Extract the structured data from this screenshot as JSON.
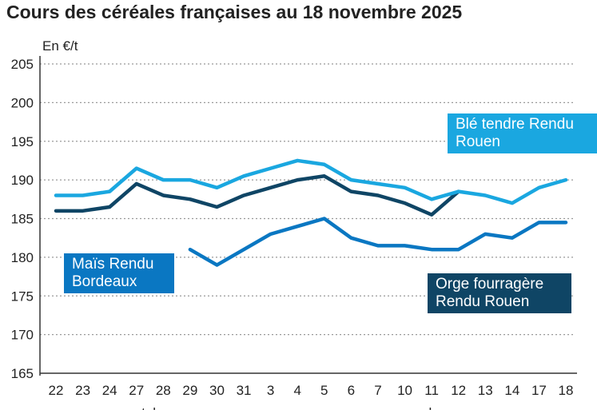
{
  "chart_data": {
    "type": "line",
    "title": "Cours des céréales françaises au 18 novembre 2025",
    "ylabel": "En €/t",
    "ylim": [
      165,
      205
    ],
    "yticks": [
      165,
      170,
      175,
      180,
      185,
      190,
      195,
      200,
      205
    ],
    "grid": true,
    "categories": [
      "22",
      "23",
      "24",
      "27",
      "28",
      "29",
      "30",
      "31",
      "3",
      "4",
      "5",
      "6",
      "7",
      "10",
      "11",
      "12",
      "13",
      "14",
      "17",
      "18"
    ],
    "months": [
      {
        "label": "octobre",
        "from": 0,
        "to": 7
      },
      {
        "label": "novembre",
        "from": 8,
        "to": 19
      }
    ],
    "series": [
      {
        "name": "Orge fourragère Rendu Rouen",
        "color": "#0f4565",
        "values": [
          186,
          186,
          186.5,
          189.5,
          188,
          187.5,
          186.5,
          188,
          189,
          190,
          190.5,
          188.5,
          188,
          187,
          185.5,
          188.5,
          null,
          null,
          null,
          null
        ]
      },
      {
        "name": "Maïs Rendu Bordeaux",
        "color": "#0a77c2",
        "values": [
          null,
          null,
          null,
          null,
          null,
          181,
          179,
          181,
          183,
          184,
          185,
          182.5,
          181.5,
          181.5,
          181,
          181,
          183,
          182.5,
          184.5,
          184.5
        ]
      },
      {
        "name": "Blé tendre Rendu Rouen",
        "color": "#1aa7e0",
        "values": [
          188,
          188,
          188.5,
          191.5,
          190,
          190,
          189,
          190.5,
          191.5,
          192.5,
          192,
          190,
          189.5,
          189,
          187.5,
          188.5,
          188,
          187,
          189,
          190
        ]
      }
    ]
  }
}
